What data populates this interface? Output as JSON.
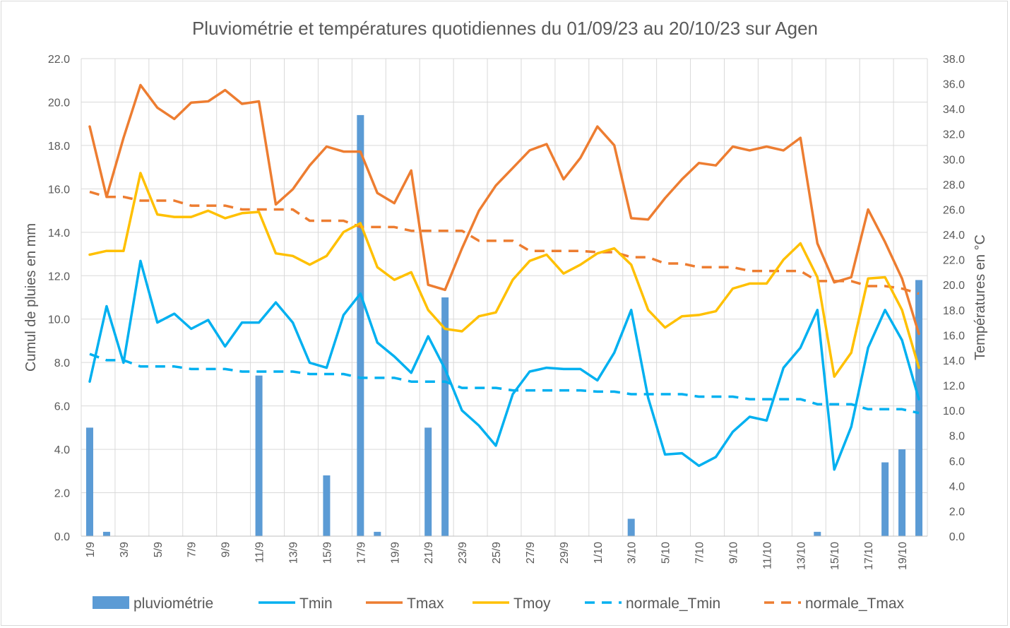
{
  "chart_data": {
    "type": "bar+line",
    "title": "Pluviométrie et températures quotidiennes du 01/09/23 au 20/10/23 sur Agen",
    "ylabel_left": "Cumul de pluies en mm",
    "ylabel_right": "Températures en °C",
    "ylim_left": [
      0,
      22
    ],
    "ylim_right": [
      0,
      38
    ],
    "yticks_left": [
      "0.0",
      "2.0",
      "4.0",
      "6.0",
      "8.0",
      "10.0",
      "12.0",
      "14.0",
      "16.0",
      "18.0",
      "20.0",
      "22.0"
    ],
    "yticks_right": [
      "0.0",
      "2.0",
      "4.0",
      "6.0",
      "8.0",
      "10.0",
      "12.0",
      "14.0",
      "16.0",
      "18.0",
      "20.0",
      "22.0",
      "24.0",
      "26.0",
      "28.0",
      "30.0",
      "32.0",
      "34.0",
      "36.0",
      "38.0"
    ],
    "grid": true,
    "legend_position": "bottom",
    "categories": [
      "1/9",
      "2/9",
      "3/9",
      "4/9",
      "5/9",
      "6/9",
      "7/9",
      "8/9",
      "9/9",
      "10/9",
      "11/9",
      "12/9",
      "13/9",
      "14/9",
      "15/9",
      "16/9",
      "17/9",
      "18/9",
      "19/9",
      "20/9",
      "21/9",
      "22/9",
      "23/9",
      "24/9",
      "25/9",
      "26/9",
      "27/9",
      "28/9",
      "29/9",
      "30/9",
      "1/10",
      "2/10",
      "3/10",
      "4/10",
      "5/10",
      "6/10",
      "7/10",
      "8/10",
      "9/10",
      "10/10",
      "11/10",
      "12/10",
      "13/10",
      "14/10",
      "15/10",
      "16/10",
      "17/10",
      "18/10",
      "19/10",
      "20/10"
    ],
    "xtick_labels": [
      "1/9",
      "3/9",
      "5/9",
      "7/9",
      "9/9",
      "11/9",
      "13/9",
      "15/9",
      "17/9",
      "19/9",
      "21/9",
      "23/9",
      "25/9",
      "27/9",
      "29/9",
      "1/10",
      "3/10",
      "5/10",
      "7/10",
      "9/10",
      "11/10",
      "13/10",
      "15/10",
      "17/10",
      "19/10"
    ],
    "series": [
      {
        "name": "pluviométrie",
        "kind": "bar",
        "axis": "left",
        "color": "#5b9bd5",
        "values": [
          5.0,
          0.2,
          0,
          0,
          0,
          0,
          0,
          0,
          0,
          0,
          7.4,
          0,
          0,
          0,
          2.8,
          0,
          19.4,
          0.2,
          0,
          0,
          5.0,
          11.0,
          0,
          0,
          0,
          0,
          0,
          0,
          0,
          0,
          0,
          0,
          0.8,
          0,
          0,
          0,
          0,
          0,
          0,
          0,
          0,
          0,
          0,
          0.2,
          0,
          0,
          0,
          3.4,
          4.0,
          11.8
        ]
      },
      {
        "name": "Tmin",
        "kind": "line",
        "axis": "right",
        "color": "#00b0f0",
        "dash": false,
        "values": [
          12.3,
          18.3,
          13.8,
          21.9,
          17.0,
          17.7,
          16.5,
          17.2,
          15.1,
          17.0,
          17.0,
          18.6,
          17.0,
          13.8,
          13.4,
          17.6,
          19.3,
          15.4,
          14.3,
          13.0,
          15.9,
          13.3,
          10.0,
          8.8,
          7.2,
          11.3,
          13.1,
          13.4,
          13.3,
          13.3,
          12.4,
          14.6,
          18.0,
          11.0,
          6.5,
          6.6,
          5.6,
          6.3,
          8.3,
          9.5,
          9.2,
          13.4,
          15.0,
          18.0,
          5.3,
          8.7,
          15.0,
          18.0,
          15.6,
          10.9
        ]
      },
      {
        "name": "Tmax",
        "kind": "line",
        "axis": "right",
        "color": "#ed7d31",
        "dash": false,
        "values": [
          32.6,
          27.0,
          31.7,
          35.9,
          34.1,
          33.2,
          34.5,
          34.6,
          35.5,
          34.4,
          34.6,
          26.4,
          27.6,
          29.5,
          31.0,
          30.6,
          30.6,
          27.3,
          26.5,
          29.1,
          20.0,
          19.6,
          22.9,
          25.9,
          27.9,
          29.3,
          30.7,
          31.2,
          28.4,
          30.1,
          32.6,
          31.1,
          25.3,
          25.2,
          26.9,
          28.4,
          29.7,
          29.5,
          31.0,
          30.7,
          31.0,
          30.7,
          31.7,
          23.3,
          20.2,
          20.6,
          26.0,
          23.4,
          20.5,
          16.1
        ]
      },
      {
        "name": "Tmoy",
        "kind": "line",
        "axis": "right",
        "color": "#ffc000",
        "dash": false,
        "values": [
          22.4,
          22.7,
          22.7,
          28.9,
          25.6,
          25.4,
          25.4,
          25.9,
          25.3,
          25.7,
          25.8,
          22.5,
          22.3,
          21.6,
          22.3,
          24.2,
          24.9,
          21.4,
          20.4,
          21.0,
          18.0,
          16.5,
          16.3,
          17.5,
          17.8,
          20.4,
          21.9,
          22.4,
          20.9,
          21.6,
          22.5,
          22.9,
          21.6,
          18.0,
          16.6,
          17.5,
          17.6,
          17.9,
          19.7,
          20.1,
          20.1,
          22.0,
          23.3,
          20.6,
          12.7,
          14.6,
          20.5,
          20.6,
          18.0,
          13.4
        ]
      },
      {
        "name": "normale_Tmin",
        "kind": "line",
        "axis": "right",
        "color": "#00b0f0",
        "dash": true,
        "values": [
          14.5,
          14.0,
          14.0,
          13.5,
          13.5,
          13.5,
          13.3,
          13.3,
          13.3,
          13.1,
          13.1,
          13.1,
          13.1,
          12.9,
          12.9,
          12.9,
          12.6,
          12.6,
          12.6,
          12.3,
          12.3,
          12.3,
          11.8,
          11.8,
          11.8,
          11.6,
          11.6,
          11.6,
          11.6,
          11.6,
          11.5,
          11.5,
          11.3,
          11.3,
          11.3,
          11.3,
          11.1,
          11.1,
          11.1,
          10.9,
          10.9,
          10.9,
          10.9,
          10.5,
          10.5,
          10.5,
          10.1,
          10.1,
          10.1,
          9.8
        ]
      },
      {
        "name": "normale_Tmax",
        "kind": "line",
        "axis": "right",
        "color": "#ed7d31",
        "dash": true,
        "values": [
          27.4,
          27.0,
          27.0,
          26.7,
          26.7,
          26.7,
          26.3,
          26.3,
          26.3,
          26.0,
          26.0,
          26.0,
          26.0,
          25.1,
          25.1,
          25.1,
          24.6,
          24.6,
          24.6,
          24.3,
          24.3,
          24.3,
          24.3,
          23.5,
          23.5,
          23.5,
          22.7,
          22.7,
          22.7,
          22.7,
          22.6,
          22.6,
          22.2,
          22.2,
          21.7,
          21.7,
          21.4,
          21.4,
          21.4,
          21.1,
          21.1,
          21.1,
          21.1,
          20.3,
          20.3,
          20.3,
          19.9,
          19.9,
          19.7,
          19.3
        ]
      }
    ]
  }
}
